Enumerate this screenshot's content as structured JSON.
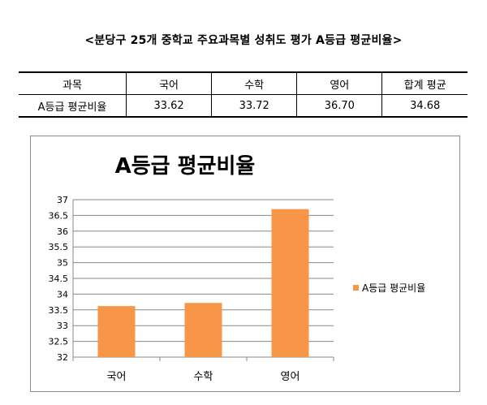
{
  "document": {
    "title": "<분당구 25개 중학교 주요과목별 성취도 평가 A등급 평균비율>"
  },
  "table": {
    "headers": [
      "과목",
      "국어",
      "수학",
      "영어",
      "합계 평균"
    ],
    "rows": [
      {
        "label": "A등급 평균비율",
        "values": [
          "33.62",
          "33.72",
          "36.70",
          "34.68"
        ]
      }
    ]
  },
  "chart_data": {
    "type": "bar",
    "title": "A등급 평균비율",
    "categories": [
      "국어",
      "수학",
      "영어"
    ],
    "series": [
      {
        "name": "A등급 평균비율",
        "values": [
          33.62,
          33.72,
          36.7
        ]
      }
    ],
    "ylim": [
      32,
      37
    ],
    "yticks": [
      "32",
      "32.5",
      "33",
      "33.5",
      "34",
      "34.5",
      "35",
      "35.5",
      "36",
      "36.5",
      "37"
    ],
    "grid": true,
    "legend": "right",
    "bar_color": "#F79646",
    "grid_color": "#878787"
  }
}
